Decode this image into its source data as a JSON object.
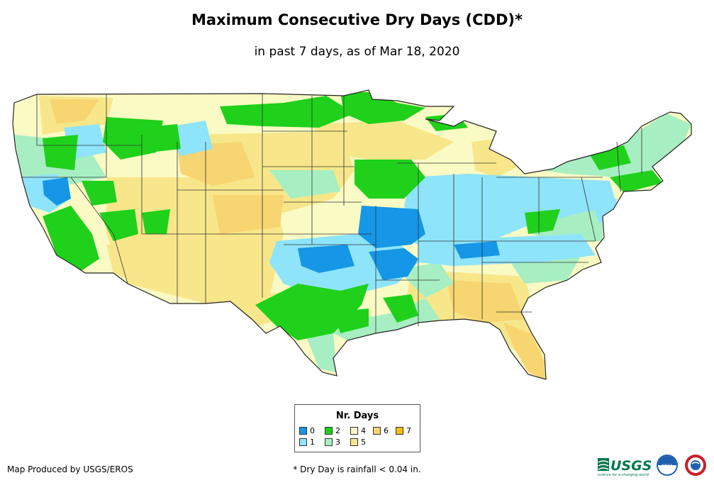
{
  "title": "Maximum Consecutive Dry Days (CDD)*",
  "subtitle": "in past 7 days, as of Mar 18, 2020",
  "legend": {
    "title": "Nr. Days",
    "items": [
      {
        "label": "0",
        "color": "#1596e6"
      },
      {
        "label": "1",
        "color": "#8ee4fa"
      },
      {
        "label": "2",
        "color": "#1fd11b"
      },
      {
        "label": "3",
        "color": "#a7efc2"
      },
      {
        "label": "4",
        "color": "#fafac4"
      },
      {
        "label": "5",
        "color": "#f7e78a"
      },
      {
        "label": "6",
        "color": "#f7d570"
      },
      {
        "label": "7",
        "color": "#f5be0f"
      }
    ]
  },
  "credit": "Map Produced by USGS/EROS",
  "footnote": "* Dry Day is rainfall < 0.04 in.",
  "logos": {
    "usgs": "USGS",
    "usgs_tagline": "science for a changing world",
    "noaa": "noaa"
  }
}
